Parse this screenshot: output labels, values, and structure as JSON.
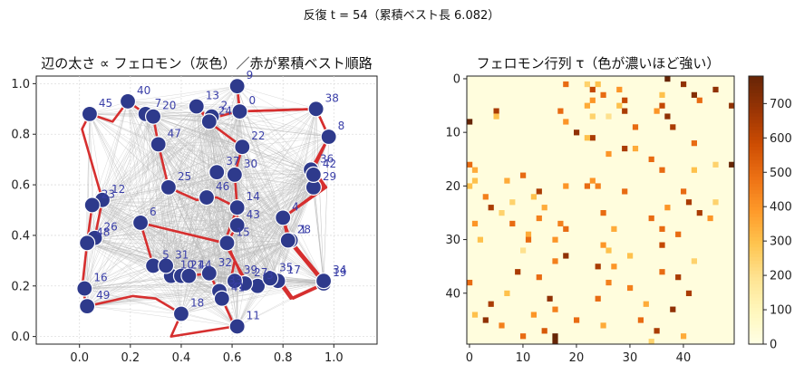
{
  "suptitle": "反復 t = 54（累積ベスト長 6.082）",
  "chart_data": [
    {
      "type": "scatter",
      "title": "辺の太さ ∝ フェロモン（灰色）／赤が累積ベスト順路",
      "xlabel": "",
      "ylabel": "",
      "xlim": [
        -0.17,
        1.17
      ],
      "ylim": [
        -0.03,
        1.03
      ],
      "xticks": [
        0.0,
        0.2,
        0.4,
        0.6,
        0.8,
        1.0
      ],
      "yticks": [
        0.0,
        0.2,
        0.4,
        0.6,
        0.8,
        1.0
      ],
      "xtick_labels": [
        "0.0",
        "0.2",
        "0.4",
        "0.6",
        "0.8",
        "1.0"
      ],
      "ytick_labels": [
        "0.0",
        "0.2",
        "0.4",
        "0.6",
        "0.8",
        "1.0"
      ],
      "grid": true,
      "node_color": "#2e3a8c",
      "tour_color": "#d62f2f",
      "edge_color": "#b8b8b8",
      "nodes": [
        {
          "id": "0",
          "x": 0.63,
          "y": 0.89
        },
        {
          "id": "1",
          "x": 0.83,
          "y": 0.38
        },
        {
          "id": "2",
          "x": 0.52,
          "y": 0.87
        },
        {
          "id": "3",
          "x": 0.7,
          "y": 0.2
        },
        {
          "id": "4",
          "x": 0.8,
          "y": 0.47
        },
        {
          "id": "5",
          "x": 0.29,
          "y": 0.28
        },
        {
          "id": "6",
          "x": 0.24,
          "y": 0.45
        },
        {
          "id": "7",
          "x": 0.26,
          "y": 0.88
        },
        {
          "id": "8",
          "x": 0.98,
          "y": 0.79
        },
        {
          "id": "9",
          "x": 0.62,
          "y": 0.99
        },
        {
          "id": "10",
          "x": 0.36,
          "y": 0.24
        },
        {
          "id": "11",
          "x": 0.62,
          "y": 0.04
        },
        {
          "id": "12",
          "x": 0.09,
          "y": 0.54
        },
        {
          "id": "13",
          "x": 0.46,
          "y": 0.91
        },
        {
          "id": "14",
          "x": 0.62,
          "y": 0.51
        },
        {
          "id": "15",
          "x": 0.58,
          "y": 0.37
        },
        {
          "id": "16",
          "x": 0.02,
          "y": 0.19
        },
        {
          "id": "17",
          "x": 0.78,
          "y": 0.22
        },
        {
          "id": "18",
          "x": 0.4,
          "y": 0.09
        },
        {
          "id": "19",
          "x": 0.96,
          "y": 0.21
        },
        {
          "id": "20",
          "x": 0.29,
          "y": 0.87
        },
        {
          "id": "21",
          "x": 0.4,
          "y": 0.24
        },
        {
          "id": "22",
          "x": 0.64,
          "y": 0.75
        },
        {
          "id": "23",
          "x": 0.05,
          "y": 0.52
        },
        {
          "id": "24",
          "x": 0.51,
          "y": 0.85
        },
        {
          "id": "25",
          "x": 0.35,
          "y": 0.59
        },
        {
          "id": "26",
          "x": 0.06,
          "y": 0.39
        },
        {
          "id": "27",
          "x": 0.65,
          "y": 0.21
        },
        {
          "id": "28",
          "x": 0.82,
          "y": 0.38
        },
        {
          "id": "29",
          "x": 0.92,
          "y": 0.59
        },
        {
          "id": "30",
          "x": 0.61,
          "y": 0.64
        },
        {
          "id": "31",
          "x": 0.34,
          "y": 0.28
        },
        {
          "id": "32",
          "x": 0.51,
          "y": 0.25
        },
        {
          "id": "33",
          "x": 0.55,
          "y": 0.18
        },
        {
          "id": "34",
          "x": 0.96,
          "y": 0.22
        },
        {
          "id": "35",
          "x": 0.75,
          "y": 0.23
        },
        {
          "id": "36",
          "x": 0.91,
          "y": 0.66
        },
        {
          "id": "37",
          "x": 0.54,
          "y": 0.65
        },
        {
          "id": "38",
          "x": 0.93,
          "y": 0.9
        },
        {
          "id": "39",
          "x": 0.61,
          "y": 0.22
        },
        {
          "id": "40",
          "x": 0.19,
          "y": 0.93
        },
        {
          "id": "41",
          "x": 0.56,
          "y": 0.15
        },
        {
          "id": "42",
          "x": 0.92,
          "y": 0.64
        },
        {
          "id": "43",
          "x": 0.62,
          "y": 0.44
        },
        {
          "id": "44",
          "x": 0.43,
          "y": 0.24
        },
        {
          "id": "45",
          "x": 0.04,
          "y": 0.88
        },
        {
          "id": "46",
          "x": 0.5,
          "y": 0.55
        },
        {
          "id": "47",
          "x": 0.31,
          "y": 0.76
        },
        {
          "id": "48",
          "x": 0.03,
          "y": 0.37
        },
        {
          "id": "49",
          "x": 0.03,
          "y": 0.12
        }
      ],
      "tour": [
        [
          0.62,
          0.99
        ],
        [
          0.63,
          0.89
        ],
        [
          0.93,
          0.9
        ],
        [
          0.98,
          0.79
        ],
        [
          0.91,
          0.66
        ],
        [
          0.96,
          0.59
        ],
        [
          0.8,
          0.47
        ],
        [
          0.82,
          0.38
        ],
        [
          0.96,
          0.21
        ],
        [
          0.83,
          0.15
        ],
        [
          0.78,
          0.22
        ],
        [
          0.7,
          0.2
        ],
        [
          0.65,
          0.21
        ],
        [
          0.58,
          0.37
        ],
        [
          0.62,
          0.44
        ],
        [
          0.62,
          0.51
        ],
        [
          0.54,
          0.55
        ],
        [
          0.46,
          0.54
        ],
        [
          0.35,
          0.59
        ],
        [
          0.31,
          0.76
        ],
        [
          0.29,
          0.87
        ],
        [
          0.26,
          0.88
        ],
        [
          0.19,
          0.93
        ],
        [
          0.13,
          0.85
        ],
        [
          0.04,
          0.88
        ],
        [
          0.01,
          0.82
        ],
        [
          0.09,
          0.54
        ],
        [
          0.06,
          0.39
        ],
        [
          0.03,
          0.37
        ],
        [
          0.05,
          0.52
        ],
        [
          0.03,
          0.37
        ],
        [
          0.01,
          0.19
        ],
        [
          0.03,
          0.12
        ],
        [
          0.21,
          0.16
        ],
        [
          0.3,
          0.15
        ],
        [
          0.4,
          0.09
        ],
        [
          0.36,
          0.0
        ],
        [
          0.61,
          0.04
        ],
        [
          0.56,
          0.15
        ],
        [
          0.51,
          0.25
        ],
        [
          0.43,
          0.24
        ],
        [
          0.4,
          0.24
        ],
        [
          0.29,
          0.28
        ],
        [
          0.24,
          0.45
        ],
        [
          0.57,
          0.37
        ],
        [
          0.61,
          0.3
        ],
        [
          0.6,
          0.25
        ],
        [
          0.65,
          0.21
        ],
        [
          0.78,
          0.22
        ]
      ],
      "tour_main": [
        [
          0.62,
          0.99
        ],
        [
          0.63,
          0.89
        ],
        [
          0.93,
          0.9
        ],
        [
          0.98,
          0.79
        ],
        [
          0.92,
          0.66
        ],
        [
          0.97,
          0.59
        ],
        [
          0.8,
          0.47
        ],
        [
          0.83,
          0.38
        ],
        [
          0.97,
          0.21
        ],
        [
          0.84,
          0.15
        ],
        [
          0.79,
          0.22
        ],
        [
          0.66,
          0.21
        ],
        [
          0.61,
          0.3
        ],
        [
          0.57,
          0.37
        ],
        [
          0.62,
          0.51
        ],
        [
          0.61,
          0.64
        ],
        [
          0.64,
          0.75
        ],
        [
          0.52,
          0.84
        ],
        [
          0.46,
          0.91
        ],
        [
          0.51,
          0.86
        ],
        [
          0.62,
          0.89
        ]
      ]
    },
    {
      "type": "heatmap",
      "title": "フェロモン行列 τ（色が濃いほど強い）",
      "rows": 50,
      "cols": 50,
      "xticks": [
        0,
        10,
        20,
        30,
        40
      ],
      "yticks": [
        0,
        10,
        20,
        30,
        40
      ],
      "xtick_labels": [
        "0",
        "10",
        "20",
        "30",
        "40"
      ],
      "ytick_labels": [
        "0",
        "10",
        "20",
        "30",
        "40"
      ],
      "colorbar_ticks": [
        0,
        100,
        200,
        300,
        400,
        500,
        600,
        700
      ],
      "colorbar_tick_labels": [
        "0",
        "100",
        "200",
        "300",
        "400",
        "500",
        "600",
        "700"
      ],
      "colorbar_max": 780,
      "colormap": "YlOrBr",
      "background_value": 20,
      "cells": [
        [
          0,
          37,
          780
        ],
        [
          1,
          40,
          700
        ],
        [
          1,
          18,
          500
        ],
        [
          1,
          22,
          250
        ],
        [
          1,
          24,
          300
        ],
        [
          2,
          23,
          600
        ],
        [
          2,
          28,
          400
        ],
        [
          2,
          46,
          700
        ],
        [
          3,
          25,
          500
        ],
        [
          3,
          42,
          720
        ],
        [
          3,
          36,
          300
        ],
        [
          4,
          29,
          600
        ],
        [
          4,
          23,
          400
        ],
        [
          4,
          43,
          500
        ],
        [
          5,
          22,
          350
        ],
        [
          5,
          28,
          300
        ],
        [
          5,
          36,
          600
        ],
        [
          5,
          49,
          700
        ],
        [
          6,
          5,
          650
        ],
        [
          6,
          17,
          500
        ],
        [
          6,
          29,
          650
        ],
        [
          6,
          35,
          400
        ],
        [
          7,
          5,
          300
        ],
        [
          7,
          23,
          250
        ],
        [
          7,
          26,
          200
        ],
        [
          7,
          37,
          700
        ],
        [
          8,
          0,
          780
        ],
        [
          8,
          18,
          400
        ],
        [
          9,
          31,
          500
        ],
        [
          9,
          38,
          650
        ],
        [
          10,
          20,
          700
        ],
        [
          11,
          23,
          650
        ],
        [
          11,
          22,
          300
        ],
        [
          12,
          42,
          500
        ],
        [
          13,
          29,
          650
        ],
        [
          13,
          31,
          350
        ],
        [
          14,
          26,
          400
        ],
        [
          15,
          34,
          500
        ],
        [
          16,
          0,
          500
        ],
        [
          16,
          46,
          250
        ],
        [
          16,
          49,
          780
        ],
        [
          17,
          1,
          350
        ],
        [
          17,
          36,
          500
        ],
        [
          17,
          42,
          300
        ],
        [
          18,
          10,
          500
        ],
        [
          19,
          7,
          350
        ],
        [
          19,
          1,
          300
        ],
        [
          19,
          23,
          400
        ],
        [
          20,
          0,
          300
        ],
        [
          20,
          18,
          400
        ],
        [
          20,
          22,
          500
        ],
        [
          20,
          24,
          450
        ],
        [
          21,
          13,
          650
        ],
        [
          21,
          29,
          500
        ],
        [
          21,
          40,
          500
        ],
        [
          22,
          3,
          450
        ],
        [
          22,
          12,
          300
        ],
        [
          23,
          8,
          250
        ],
        [
          23,
          41,
          650
        ],
        [
          23,
          46,
          250
        ],
        [
          24,
          4,
          650
        ],
        [
          24,
          14,
          350
        ],
        [
          24,
          37,
          400
        ],
        [
          25,
          6,
          250
        ],
        [
          25,
          25,
          500
        ],
        [
          25,
          43,
          650
        ],
        [
          26,
          13,
          450
        ],
        [
          26,
          34,
          500
        ],
        [
          26,
          45,
          400
        ],
        [
          27,
          1,
          400
        ],
        [
          27,
          8,
          500
        ],
        [
          27,
          17,
          450
        ],
        [
          28,
          18,
          500
        ],
        [
          28,
          27,
          350
        ],
        [
          28,
          36,
          500
        ],
        [
          29,
          11,
          350
        ],
        [
          29,
          39,
          500
        ],
        [
          30,
          2,
          300
        ],
        [
          30,
          11,
          500
        ],
        [
          30,
          16,
          400
        ],
        [
          31,
          25,
          400
        ],
        [
          31,
          36,
          600
        ],
        [
          32,
          10,
          200
        ],
        [
          32,
          26,
          300
        ],
        [
          33,
          18,
          700
        ],
        [
          33,
          30,
          300
        ],
        [
          34,
          16,
          450
        ],
        [
          34,
          42,
          250
        ],
        [
          35,
          24,
          650
        ],
        [
          35,
          27,
          400
        ],
        [
          36,
          9,
          650
        ],
        [
          36,
          36,
          500
        ],
        [
          37,
          13,
          500
        ],
        [
          37,
          39,
          650
        ],
        [
          38,
          0,
          500
        ],
        [
          38,
          26,
          450
        ],
        [
          39,
          30,
          450
        ],
        [
          40,
          7,
          300
        ],
        [
          40,
          41,
          650
        ],
        [
          41,
          15,
          700
        ],
        [
          41,
          24,
          500
        ],
        [
          42,
          4,
          650
        ],
        [
          42,
          33,
          350
        ],
        [
          43,
          16,
          450
        ],
        [
          43,
          38,
          700
        ],
        [
          44,
          1,
          300
        ],
        [
          44,
          12,
          400
        ],
        [
          45,
          3,
          700
        ],
        [
          45,
          20,
          500
        ],
        [
          45,
          32,
          500
        ],
        [
          46,
          6,
          450
        ],
        [
          46,
          25,
          350
        ],
        [
          47,
          14,
          550
        ],
        [
          47,
          35,
          650
        ],
        [
          48,
          10,
          500
        ],
        [
          48,
          16,
          780
        ],
        [
          48,
          40,
          350
        ],
        [
          49,
          16,
          780
        ],
        [
          49,
          34,
          250
        ]
      ]
    }
  ]
}
